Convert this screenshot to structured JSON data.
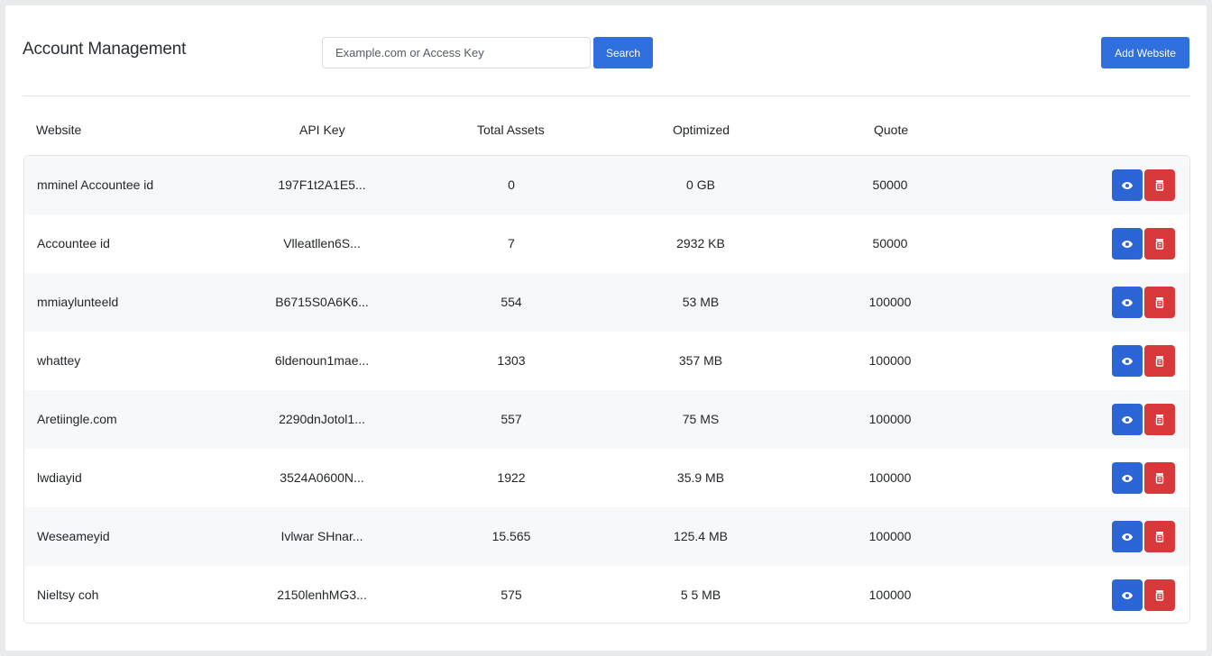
{
  "header": {
    "title": "Account Management",
    "search_placeholder": "Example.com or Access Key",
    "search_label": "Search",
    "add_label": "Add Website"
  },
  "columns": {
    "website": "Website",
    "api_key": "API Key",
    "total_assets": "Total Assets",
    "optimized": "Optimized",
    "quota": "Quote"
  },
  "rows": [
    {
      "website": "mminel Accountee id",
      "api_key": "197F1t2A1E5...",
      "total_assets": "0",
      "optimized": "0 GB",
      "quota": "50000"
    },
    {
      "website": "Accountee id",
      "api_key": "Vlleatllen6S...",
      "total_assets": "7",
      "optimized": "2932 KB",
      "quota": "50000"
    },
    {
      "website": "mmiaylunteeld",
      "api_key": "B6715S0A6K6...",
      "total_assets": "554",
      "optimized": "53 MB",
      "quota": "100000"
    },
    {
      "website": "whattey",
      "api_key": "6ldenoun1mae...",
      "total_assets": "1303",
      "optimized": "357 MB",
      "quota": "100000"
    },
    {
      "website": "Aretiingle.com",
      "api_key": "2290dnJotol1...",
      "total_assets": "557",
      "optimized": "75 MS",
      "quota": "100000"
    },
    {
      "website": "lwdiayid",
      "api_key": "3524A0600N...",
      "total_assets": "1922",
      "optimized": "35.9 MB",
      "quota": "100000"
    },
    {
      "website": "Weseameyid",
      "api_key": "Ivlwar SHnar...",
      "total_assets": "15.565",
      "optimized": "125.4 MB",
      "quota": "100000"
    },
    {
      "website": "Nieltsy coh",
      "api_key": "2150lenhMG3...",
      "total_assets": "575",
      "optimized": "5 5 MB",
      "quota": "100000"
    }
  ],
  "icons": {
    "view": "eye-icon",
    "delete": "trash-icon"
  },
  "colors": {
    "primary": "#2f6fde",
    "danger": "#d8383a"
  }
}
